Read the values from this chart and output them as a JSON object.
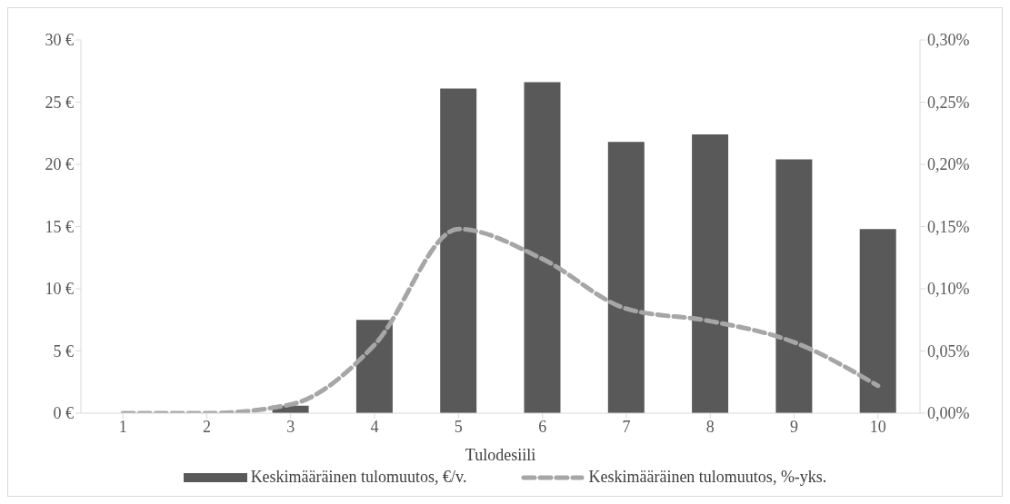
{
  "chart_data": {
    "type": "bar",
    "xlabel": "Tulodesiili",
    "categories": [
      "1",
      "2",
      "3",
      "4",
      "5",
      "6",
      "7",
      "8",
      "9",
      "10"
    ],
    "series": [
      {
        "name": "Keskimääräinen tulomuutos, €/v.",
        "color": "#595959",
        "values": [
          0,
          0,
          0.6,
          7.5,
          26.1,
          26.6,
          21.8,
          22.4,
          20.4,
          14.8
        ]
      },
      {
        "name": "Keskimääräinen tulomuutos, %-yks.",
        "type": "line",
        "axis": "y2",
        "color": "#a6a6a6",
        "line_style": "dashed",
        "marker": "none",
        "values": [
          0,
          0,
          0.007,
          0.055,
          0.148,
          0.124,
          0.084,
          0.074,
          0.057,
          0.022
        ]
      }
    ],
    "ylim": [
      0,
      30
    ],
    "yticks": [
      {
        "value": 0,
        "label": "0 €"
      },
      {
        "value": 5,
        "label": "5 €"
      },
      {
        "value": 10,
        "label": "10 €"
      },
      {
        "value": 15,
        "label": "15 €"
      },
      {
        "value": 20,
        "label": "20 €"
      },
      {
        "value": 25,
        "label": "25 €"
      },
      {
        "value": 30,
        "label": "30 €"
      }
    ],
    "y2lim": [
      0,
      0.3
    ],
    "y2ticks": [
      {
        "value": 0,
        "label": "0,00%"
      },
      {
        "value": 0.05,
        "label": "0,05%"
      },
      {
        "value": 0.1,
        "label": "0,10%"
      },
      {
        "value": 0.15,
        "label": "0,15%"
      },
      {
        "value": 0.2,
        "label": "0,20%"
      },
      {
        "value": 0.25,
        "label": "0,25%"
      },
      {
        "value": 0.3,
        "label": "0,30%"
      }
    ],
    "grid": false,
    "legend": "bottom"
  }
}
